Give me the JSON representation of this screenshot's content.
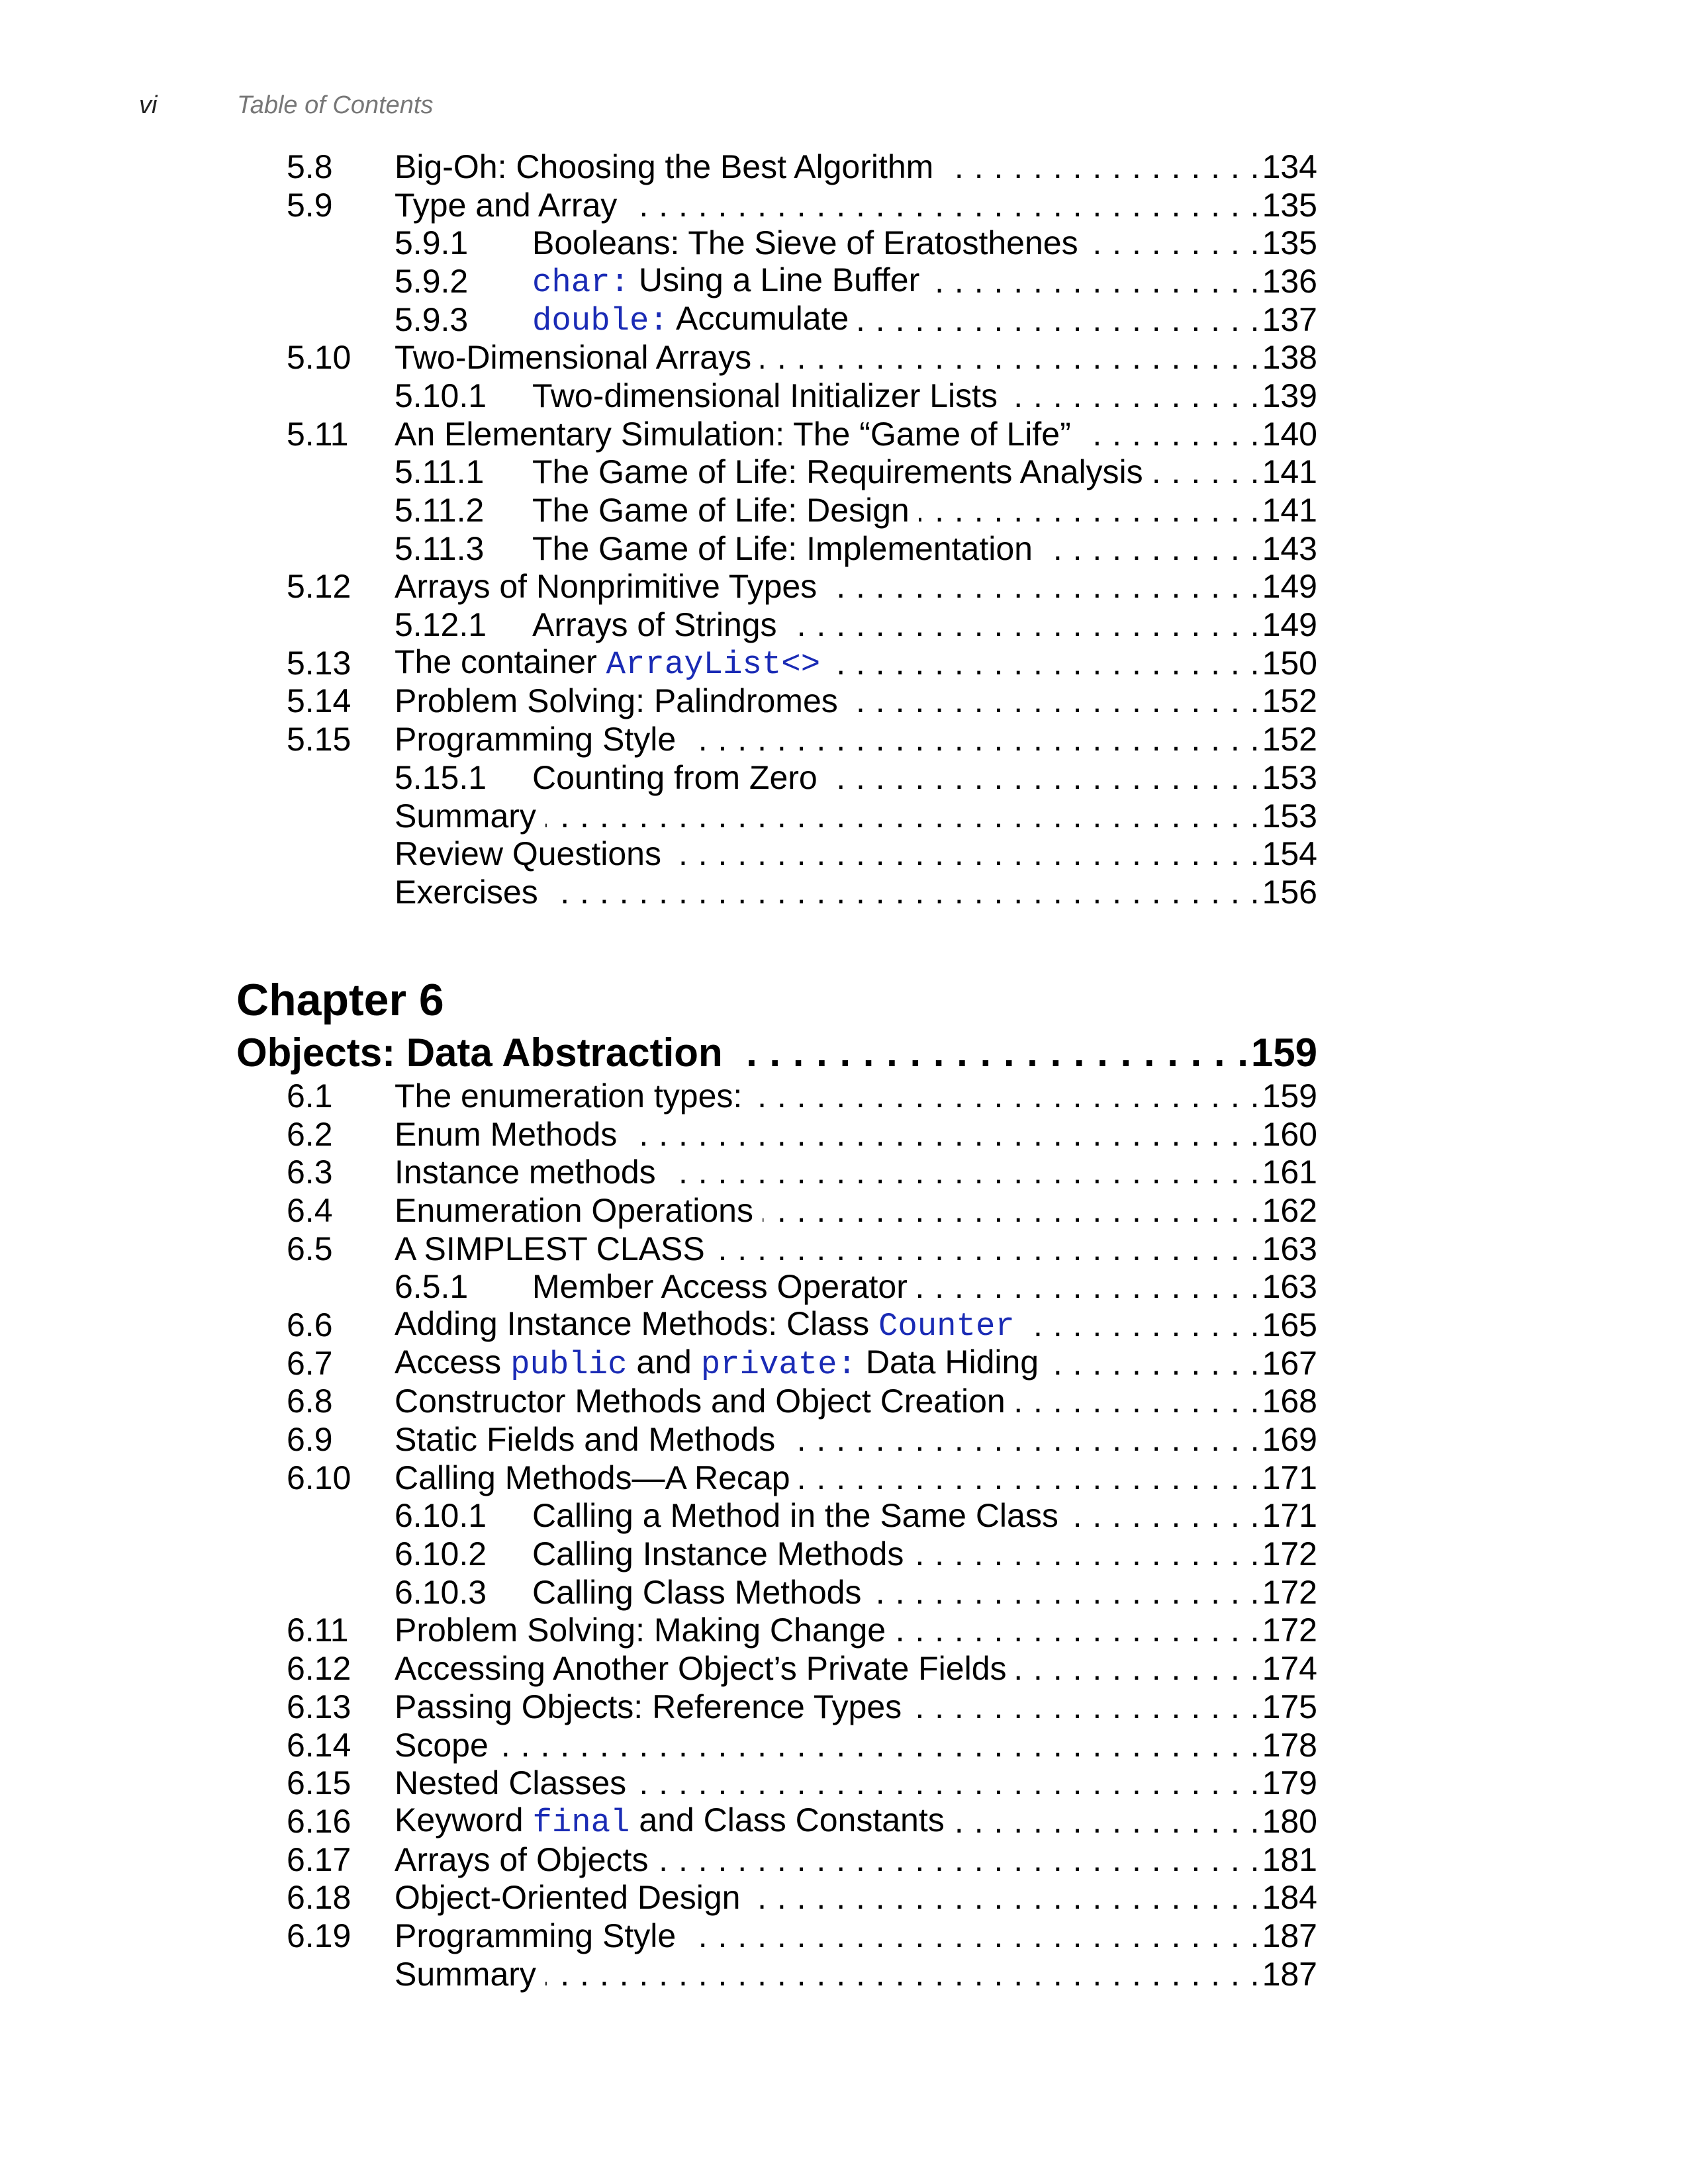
{
  "header": {
    "page_number": "vi",
    "running_title": "Table of Contents"
  },
  "colors": {
    "code": "#1a2bb5",
    "running_title": "#777777"
  },
  "part1": [
    {
      "num": "5.8",
      "level": 1,
      "title": [
        {
          "t": "Big-Oh: Choosing the Best Algorithm"
        }
      ],
      "page": "134"
    },
    {
      "num": "5.9",
      "level": 1,
      "title": [
        {
          "t": "Type and Array"
        }
      ],
      "page": "135"
    },
    {
      "num": "5.9.1",
      "level": 2,
      "title": [
        {
          "t": "Booleans: The Sieve of Eratosthenes"
        }
      ],
      "page": "135"
    },
    {
      "num": "5.9.2",
      "level": 2,
      "title": [
        {
          "t": "char:",
          "code": true
        },
        {
          "t": " Using a Line Buffer"
        }
      ],
      "page": "136"
    },
    {
      "num": "5.9.3",
      "level": 2,
      "title": [
        {
          "t": "double:",
          "code": true
        },
        {
          "t": " Accumulate"
        }
      ],
      "page": "137"
    },
    {
      "num": "5.10",
      "level": 1,
      "title": [
        {
          "t": "Two-Dimensional Arrays"
        }
      ],
      "page": "138"
    },
    {
      "num": "5.10.1",
      "level": 2,
      "title": [
        {
          "t": "Two-dimensional Initializer Lists"
        }
      ],
      "page": "139"
    },
    {
      "num": "5.11",
      "level": 1,
      "title": [
        {
          "t": "An Elementary Simulation: The “Game of Life”"
        }
      ],
      "page": "140"
    },
    {
      "num": "5.11.1",
      "level": 2,
      "title": [
        {
          "t": "The Game of Life: Requirements Analysis"
        }
      ],
      "page": "141"
    },
    {
      "num": "5.11.2",
      "level": 2,
      "title": [
        {
          "t": "The Game of Life: Design"
        }
      ],
      "page": "141"
    },
    {
      "num": "5.11.3",
      "level": 2,
      "title": [
        {
          "t": "The Game of Life: Implementation"
        }
      ],
      "page": "143"
    },
    {
      "num": "5.12",
      "level": 1,
      "title": [
        {
          "t": "Arrays of Nonprimitive Types"
        }
      ],
      "page": "149"
    },
    {
      "num": "5.12.1",
      "level": 2,
      "title": [
        {
          "t": "Arrays of Strings"
        }
      ],
      "page": "149"
    },
    {
      "num": "5.13",
      "level": 1,
      "title": [
        {
          "t": "The container "
        },
        {
          "t": "ArrayList<>",
          "code": true
        }
      ],
      "page": "150"
    },
    {
      "num": "5.14",
      "level": 1,
      "title": [
        {
          "t": "Problem Solving: Palindromes"
        }
      ],
      "page": "152"
    },
    {
      "num": "5.15",
      "level": 1,
      "title": [
        {
          "t": "Programming Style"
        }
      ],
      "page": "152"
    },
    {
      "num": "5.15.1",
      "level": 2,
      "title": [
        {
          "t": "Counting from Zero"
        }
      ],
      "page": "153"
    },
    {
      "num": "",
      "level": 1,
      "title": [
        {
          "t": "Summary"
        }
      ],
      "page": "153"
    },
    {
      "num": "",
      "level": 1,
      "title": [
        {
          "t": "Review Questions"
        }
      ],
      "page": "154"
    },
    {
      "num": "",
      "level": 1,
      "title": [
        {
          "t": "Exercises"
        }
      ],
      "page": "156"
    }
  ],
  "chapter": {
    "label": "Chapter 6",
    "title": "Objects: Data Abstraction",
    "page": "159"
  },
  "part2": [
    {
      "num": "6.1",
      "level": 1,
      "title": [
        {
          "t": "The enumeration types:"
        }
      ],
      "page": "159"
    },
    {
      "num": "6.2",
      "level": 1,
      "title": [
        {
          "t": "Enum Methods"
        }
      ],
      "page": "160"
    },
    {
      "num": "6.3",
      "level": 1,
      "title": [
        {
          "t": "Instance methods"
        }
      ],
      "page": "161"
    },
    {
      "num": "6.4",
      "level": 1,
      "title": [
        {
          "t": "Enumeration Operations"
        }
      ],
      "page": "162"
    },
    {
      "num": "6.5",
      "level": 1,
      "title": [
        {
          "t": "A SIMPLEST CLASS"
        }
      ],
      "page": "163"
    },
    {
      "num": "6.5.1",
      "level": 2,
      "title": [
        {
          "t": "Member Access Operator"
        }
      ],
      "page": "163"
    },
    {
      "num": "6.6",
      "level": 1,
      "title": [
        {
          "t": "Adding Instance Methods: Class "
        },
        {
          "t": "Counter",
          "code": true
        }
      ],
      "page": "165"
    },
    {
      "num": "6.7",
      "level": 1,
      "title": [
        {
          "t": "Access "
        },
        {
          "t": "public",
          "code": true
        },
        {
          "t": " and "
        },
        {
          "t": "private:",
          "code": true
        },
        {
          "t": " Data Hiding"
        }
      ],
      "page": "167"
    },
    {
      "num": "6.8",
      "level": 1,
      "title": [
        {
          "t": "Constructor Methods and Object Creation"
        }
      ],
      "page": "168"
    },
    {
      "num": "6.9",
      "level": 1,
      "title": [
        {
          "t": "Static Fields and Methods"
        }
      ],
      "page": "169"
    },
    {
      "num": "6.10",
      "level": 1,
      "title": [
        {
          "t": "Calling Methods—A Recap"
        }
      ],
      "page": "171"
    },
    {
      "num": "6.10.1",
      "level": 2,
      "title": [
        {
          "t": "Calling a Method in the Same Class"
        }
      ],
      "page": "171"
    },
    {
      "num": "6.10.2",
      "level": 2,
      "title": [
        {
          "t": "Calling Instance Methods"
        }
      ],
      "page": "172"
    },
    {
      "num": "6.10.3",
      "level": 2,
      "title": [
        {
          "t": "Calling Class Methods"
        }
      ],
      "page": "172"
    },
    {
      "num": "6.11",
      "level": 1,
      "title": [
        {
          "t": "Problem Solving: Making Change"
        }
      ],
      "page": "172"
    },
    {
      "num": "6.12",
      "level": 1,
      "title": [
        {
          "t": "Accessing Another Object’s Private Fields"
        }
      ],
      "page": "174"
    },
    {
      "num": "6.13",
      "level": 1,
      "title": [
        {
          "t": "Passing Objects: Reference Types"
        }
      ],
      "page": "175"
    },
    {
      "num": "6.14",
      "level": 1,
      "title": [
        {
          "t": "Scope"
        }
      ],
      "page": "178"
    },
    {
      "num": "6.15",
      "level": 1,
      "title": [
        {
          "t": "Nested Classes"
        }
      ],
      "page": "179"
    },
    {
      "num": "6.16",
      "level": 1,
      "title": [
        {
          "t": "Keyword "
        },
        {
          "t": "final",
          "code": true
        },
        {
          "t": " and Class Constants"
        }
      ],
      "page": "180"
    },
    {
      "num": "6.17",
      "level": 1,
      "title": [
        {
          "t": "Arrays of Objects"
        }
      ],
      "page": "181"
    },
    {
      "num": "6.18",
      "level": 1,
      "title": [
        {
          "t": "Object-Oriented Design"
        }
      ],
      "page": "184"
    },
    {
      "num": "6.19",
      "level": 1,
      "title": [
        {
          "t": "Programming Style"
        }
      ],
      "page": "187"
    },
    {
      "num": "",
      "level": 1,
      "title": [
        {
          "t": "Summary"
        }
      ],
      "page": "187"
    }
  ]
}
